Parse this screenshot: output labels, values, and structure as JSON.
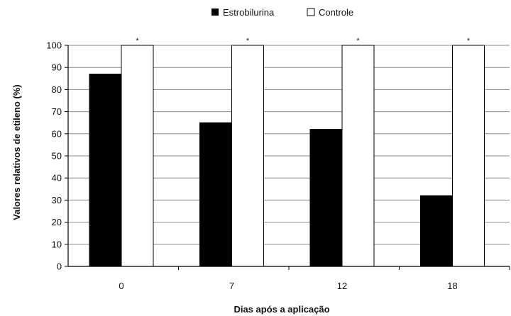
{
  "chart_data": {
    "type": "bar",
    "categories": [
      "0",
      "7",
      "12",
      "18"
    ],
    "series": [
      {
        "name": "Estrobilurina",
        "values": [
          87,
          65,
          62,
          32
        ],
        "color": "#000000"
      },
      {
        "name": "Controle",
        "values": [
          100,
          100,
          100,
          100
        ],
        "color": "#ffffff"
      }
    ],
    "significance_markers": [
      "*",
      "*",
      "*",
      "*"
    ],
    "xlabel": "Dias após a aplicação",
    "ylabel": "Valores relativos de etileno (%)",
    "ylim": [
      0,
      100
    ],
    "yticks": [
      0,
      10,
      20,
      30,
      40,
      50,
      60,
      70,
      80,
      90,
      100
    ],
    "grid": true,
    "legend_position": "top-center"
  }
}
